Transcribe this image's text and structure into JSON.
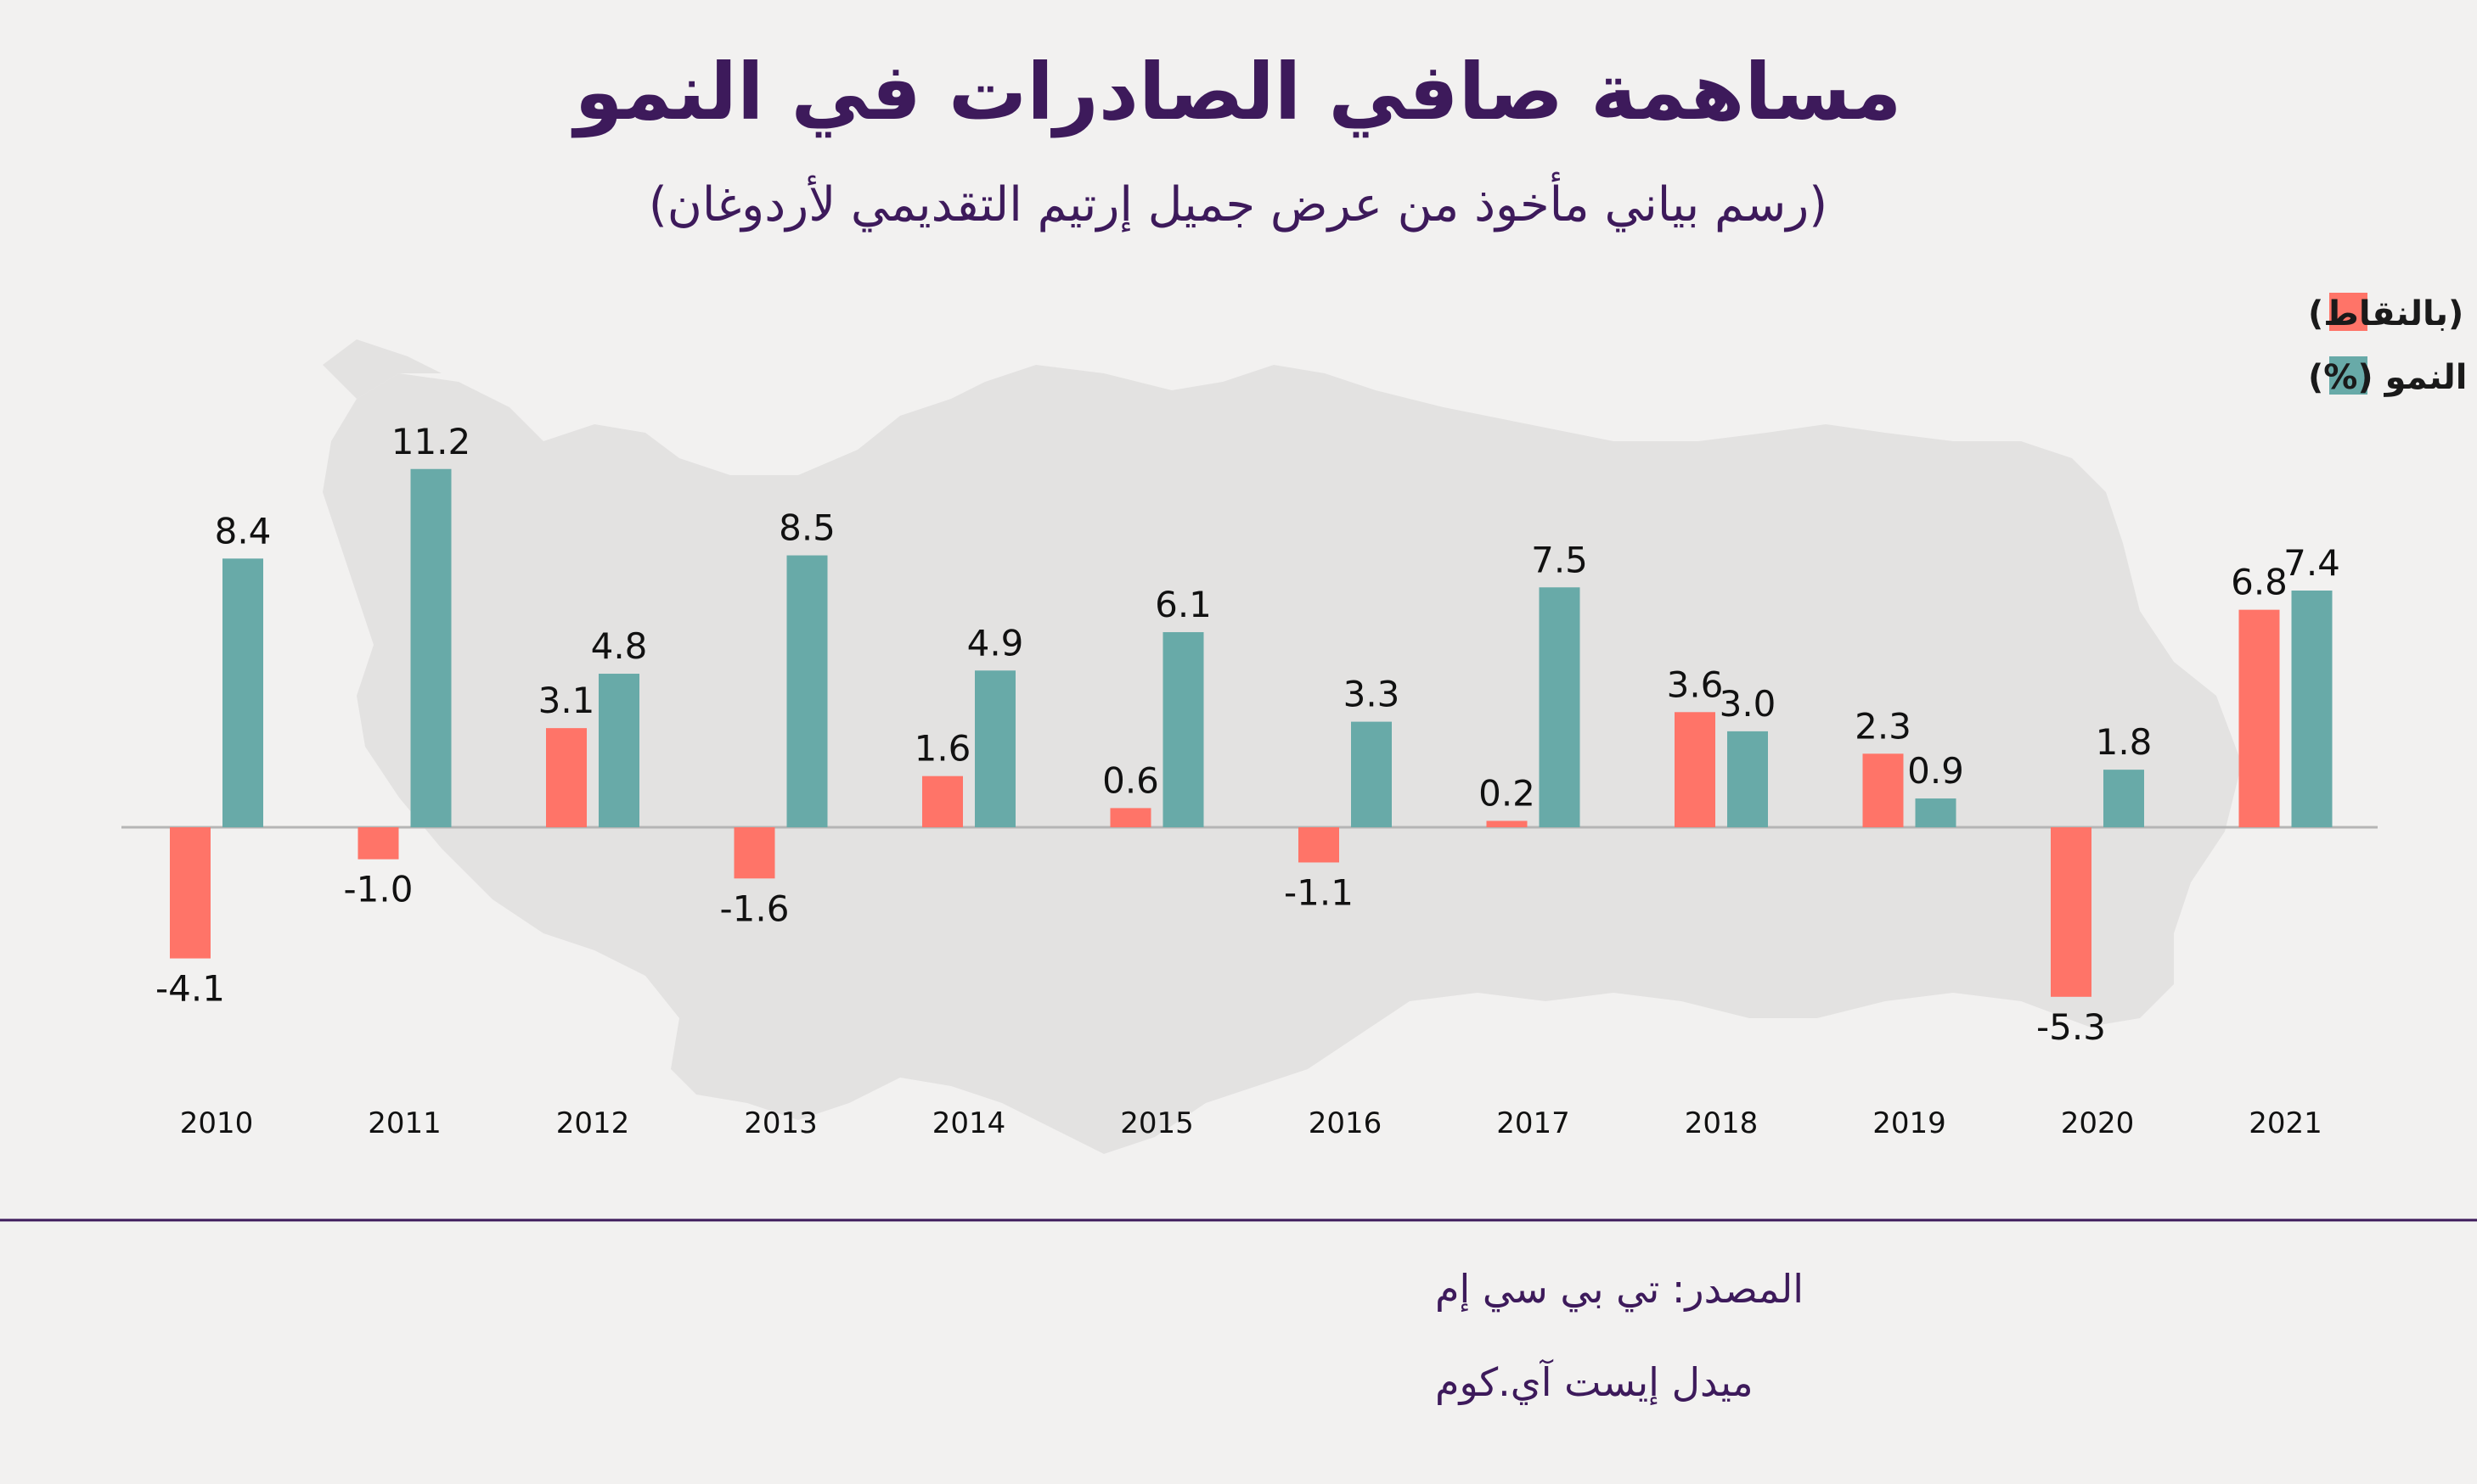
{
  "title": "مساهمة صافي الصادرات في النمو",
  "subtitle": "(رسم بياني مأخوذ من عرض جميل إرتيم التقديمي لأردوغان)",
  "source": {
    "line1": "المصدر: تي بي سي إم",
    "line2": "ميدل إيست آي.كوم"
  },
  "colors": {
    "background": "#f2f1f0",
    "net_exports": "#ff7468",
    "growth": "#68aaa8",
    "title": "#3d1a5b",
    "map": "#e3e2e1",
    "divider": "#3d1a5b"
  },
  "chart_data": {
    "type": "bar",
    "categories": [
      "2010",
      "2011",
      "2012",
      "2013",
      "2014",
      "2015",
      "2016",
      "2017",
      "2018",
      "2019",
      "2020",
      "2021"
    ],
    "series": [
      {
        "name": "صافي الصادرات (بالنقاط)",
        "color": "#ff7468",
        "values": [
          -4.1,
          -1.0,
          3.1,
          -1.6,
          1.6,
          0.6,
          -1.1,
          0.2,
          3.6,
          2.3,
          -5.3,
          6.8
        ],
        "labels": [
          "-4.1",
          "-1.0",
          "3.1",
          "-1.6",
          "1.6",
          "0.6",
          "-1.1",
          "0.2",
          "3.6",
          "2.3",
          "-5.3",
          "6.8"
        ]
      },
      {
        "name": "النمو (%)",
        "color": "#68aaa8",
        "values": [
          8.4,
          11.2,
          4.8,
          8.5,
          4.9,
          6.1,
          3.3,
          7.5,
          3.0,
          0.9,
          1.8,
          7.4
        ],
        "labels": [
          "8.4",
          "11.2",
          "4.8",
          "8.5",
          "4.9",
          "6.1",
          "3.3",
          "7.5",
          "3.0",
          "0.9",
          "1.8",
          "7.4"
        ]
      }
    ],
    "ylim": [
      -6,
      12
    ],
    "legend_position": "top-right",
    "grid": false
  }
}
